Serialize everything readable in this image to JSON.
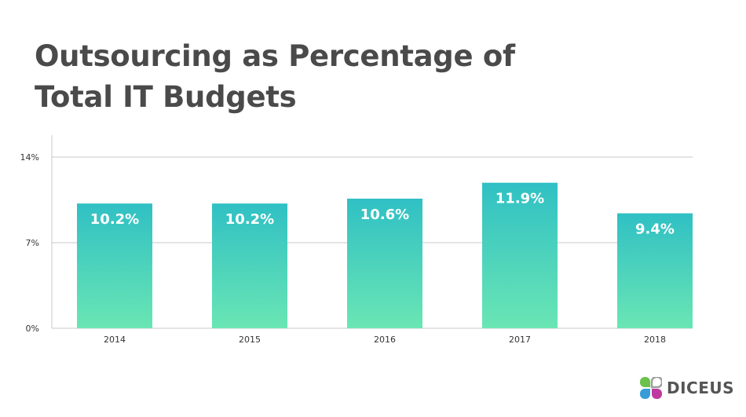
{
  "header": {
    "title_line1": "Outsourcing as Percentage of",
    "title_line2": "Total IT Budgets"
  },
  "logo": {
    "icon": "four-petal-clover-icon",
    "text": "DICEUS",
    "colors": [
      "#6cc24a",
      "#9e9e9e",
      "#3a9bd9",
      "#c0399e"
    ]
  },
  "colors": {
    "bar_top": "#30c0c4",
    "bar_bottom": "#6ae6b4",
    "grid": "#c8c8c8",
    "axis_text": "#333333",
    "bar_label": "#ffffff"
  },
  "chart_data": {
    "type": "bar",
    "title": "Outsourcing as Percentage of Total IT Budgets",
    "xlabel": "",
    "ylabel": "",
    "categories": [
      "2014",
      "2015",
      "2016",
      "2017",
      "2018"
    ],
    "values": [
      10.2,
      10.2,
      10.6,
      11.9,
      9.4
    ],
    "data_labels": [
      "10.2%",
      "10.2%",
      "10.6%",
      "11.9%",
      "9.4%"
    ],
    "yticks": [
      0,
      7,
      14
    ],
    "ytick_labels": [
      "0%",
      "7%",
      "14%"
    ],
    "ylim": [
      0,
      14
    ],
    "grid": true,
    "legend": "none",
    "unit": "%"
  }
}
